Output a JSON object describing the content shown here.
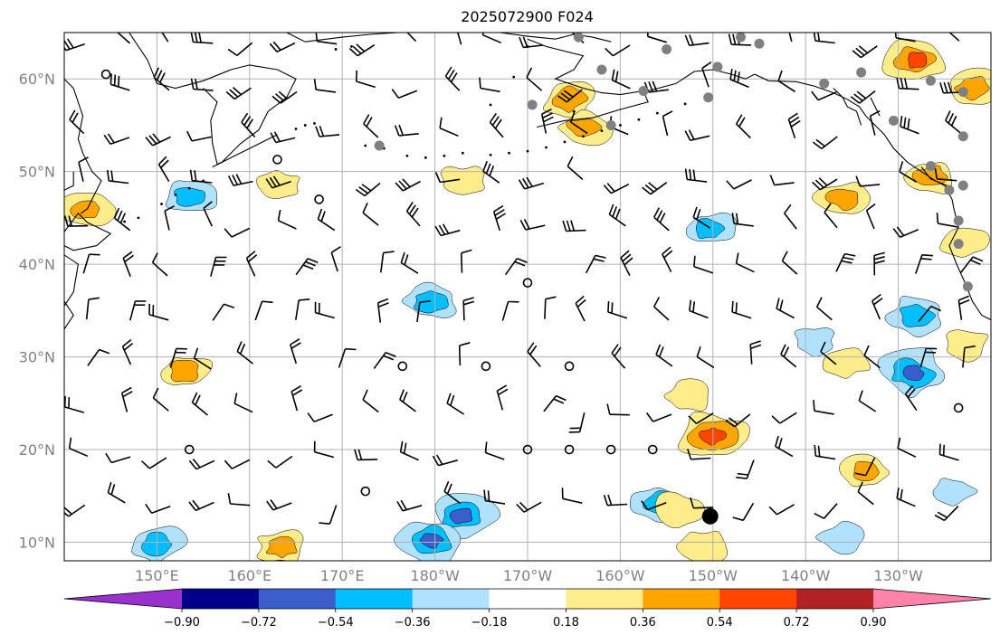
{
  "title": "2025072900 F024",
  "map": {
    "lon_range": [
      140,
      240
    ],
    "lat_range": [
      8,
      65
    ],
    "lat_gridlines": [
      10,
      20,
      30,
      40,
      50,
      60
    ],
    "lon_gridlines": [
      150,
      160,
      170,
      180,
      190,
      200,
      210,
      220,
      230
    ],
    "lat_labels": [
      {
        "lat": 10,
        "text": "10°N"
      },
      {
        "lat": 20,
        "text": "20°N"
      },
      {
        "lat": 30,
        "text": "30°N"
      },
      {
        "lat": 40,
        "text": "40°N"
      },
      {
        "lat": 50,
        "text": "50°N"
      },
      {
        "lat": 60,
        "text": "60°N"
      }
    ],
    "lon_labels": [
      {
        "lon": 150,
        "text": "150°E"
      },
      {
        "lon": 160,
        "text": "160°E"
      },
      {
        "lon": 170,
        "text": "170°E"
      },
      {
        "lon": 180,
        "text": "180°W"
      },
      {
        "lon": 190,
        "text": "170°W"
      },
      {
        "lon": 200,
        "text": "160°W"
      },
      {
        "lon": 210,
        "text": "150°W"
      },
      {
        "lon": 220,
        "text": "140°W"
      },
      {
        "lon": 230,
        "text": "130°W"
      }
    ],
    "gridline_color": "#b0b0b0"
  },
  "colorbar": {
    "levels": [
      -0.9,
      -0.72,
      -0.54,
      -0.36,
      -0.18,
      0.18,
      0.36,
      0.54,
      0.72,
      0.9
    ],
    "labels": [
      "−0.90",
      "−0.72",
      "−0.54",
      "−0.36",
      "−0.18",
      "0.18",
      "0.36",
      "0.54",
      "0.72",
      "0.90"
    ],
    "colors": [
      "#9932cc",
      "#00008b",
      "#3a5fcd",
      "#00bfff",
      "#b0e2ff",
      "#ffffff",
      "#ffec8b",
      "#ffa500",
      "#ff4500",
      "#b22222",
      "#ff82ab"
    ],
    "extend": "both"
  },
  "anomalies": [
    {
      "lon": 153.5,
      "lat": 47.2,
      "value": -0.4
    },
    {
      "lon": 179.5,
      "lat": 36.0,
      "value": -0.45
    },
    {
      "lon": 209.5,
      "lat": 43.8,
      "value": -0.4
    },
    {
      "lon": 232.0,
      "lat": 34.5,
      "value": -0.45
    },
    {
      "lon": 231.5,
      "lat": 28.3,
      "value": -0.6
    },
    {
      "lon": 221.0,
      "lat": 31.8,
      "value": -0.3
    },
    {
      "lon": 204.0,
      "lat": 14.3,
      "value": -0.4
    },
    {
      "lon": 183.0,
      "lat": 12.8,
      "value": -0.55
    },
    {
      "lon": 179.5,
      "lat": 10.2,
      "value": -0.6
    },
    {
      "lon": 150.0,
      "lat": 9.8,
      "value": -0.4
    },
    {
      "lon": 224.0,
      "lat": 10.5,
      "value": -0.35
    },
    {
      "lon": 236.0,
      "lat": 15.5,
      "value": -0.3
    },
    {
      "lon": 194.5,
      "lat": 57.8,
      "value": 0.45
    },
    {
      "lon": 196.0,
      "lat": 54.8,
      "value": 0.4
    },
    {
      "lon": 183.0,
      "lat": 49.0,
      "value": 0.3
    },
    {
      "lon": 142.5,
      "lat": 46.0,
      "value": 0.4
    },
    {
      "lon": 163.0,
      "lat": 48.5,
      "value": 0.3
    },
    {
      "lon": 224.0,
      "lat": 47.2,
      "value": 0.4
    },
    {
      "lon": 232.0,
      "lat": 62.0,
      "value": 0.6
    },
    {
      "lon": 238.0,
      "lat": 59.0,
      "value": 0.45
    },
    {
      "lon": 233.5,
      "lat": 49.5,
      "value": 0.4
    },
    {
      "lon": 210.0,
      "lat": 21.5,
      "value": 0.65
    },
    {
      "lon": 207.5,
      "lat": 25.8,
      "value": 0.35
    },
    {
      "lon": 153.0,
      "lat": 28.5,
      "value": 0.4
    },
    {
      "lon": 163.5,
      "lat": 9.5,
      "value": 0.4
    },
    {
      "lon": 226.5,
      "lat": 17.5,
      "value": 0.4
    },
    {
      "lon": 237.5,
      "lat": 31.5,
      "value": 0.35
    },
    {
      "lon": 224.5,
      "lat": 29.5,
      "value": 0.3
    },
    {
      "lon": 206.0,
      "lat": 13.5,
      "value": 0.35
    },
    {
      "lon": 209.0,
      "lat": 9.6,
      "value": 0.35
    },
    {
      "lon": 237.0,
      "lat": 42.5,
      "value": 0.3
    }
  ],
  "stations": [
    {
      "lon": 174.0,
      "lat": 52.8
    },
    {
      "lon": 190.5,
      "lat": 57.2
    },
    {
      "lon": 195.5,
      "lat": 64.5
    },
    {
      "lon": 198.0,
      "lat": 61.0
    },
    {
      "lon": 202.5,
      "lat": 58.7
    },
    {
      "lon": 205.0,
      "lat": 63.2
    },
    {
      "lon": 209.5,
      "lat": 58.0
    },
    {
      "lon": 210.5,
      "lat": 61.3
    },
    {
      "lon": 213.0,
      "lat": 64.5
    },
    {
      "lon": 215.0,
      "lat": 63.8
    },
    {
      "lon": 222.0,
      "lat": 59.5
    },
    {
      "lon": 226.0,
      "lat": 60.7
    },
    {
      "lon": 229.5,
      "lat": 55.5
    },
    {
      "lon": 233.5,
      "lat": 59.8
    },
    {
      "lon": 237.0,
      "lat": 58.6
    },
    {
      "lon": 237.0,
      "lat": 53.8
    },
    {
      "lon": 233.5,
      "lat": 50.6
    },
    {
      "lon": 235.5,
      "lat": 48.0
    },
    {
      "lon": 237.0,
      "lat": 48.5
    },
    {
      "lon": 236.5,
      "lat": 44.7
    },
    {
      "lon": 236.5,
      "lat": 42.2
    },
    {
      "lon": 237.5,
      "lat": 37.6
    },
    {
      "lon": 199.0,
      "lat": 55.0
    }
  ],
  "calm_circles": [
    {
      "lon": 144.5,
      "lat": 60.5
    },
    {
      "lon": 163.0,
      "lat": 51.3
    },
    {
      "lon": 167.5,
      "lat": 47.0
    },
    {
      "lon": 190.0,
      "lat": 38.0
    },
    {
      "lon": 176.5,
      "lat": 29.0
    },
    {
      "lon": 185.5,
      "lat": 29.0
    },
    {
      "lon": 194.5,
      "lat": 29.0
    },
    {
      "lon": 153.5,
      "lat": 20.0
    },
    {
      "lon": 190.0,
      "lat": 20.0
    },
    {
      "lon": 194.5,
      "lat": 20.0
    },
    {
      "lon": 199.0,
      "lat": 20.0
    },
    {
      "lon": 203.5,
      "lat": 20.0
    },
    {
      "lon": 172.5,
      "lat": 15.5
    },
    {
      "lon": 236.5,
      "lat": 24.5
    }
  ],
  "marker": {
    "lon": 209.7,
    "lat": 12.8
  }
}
